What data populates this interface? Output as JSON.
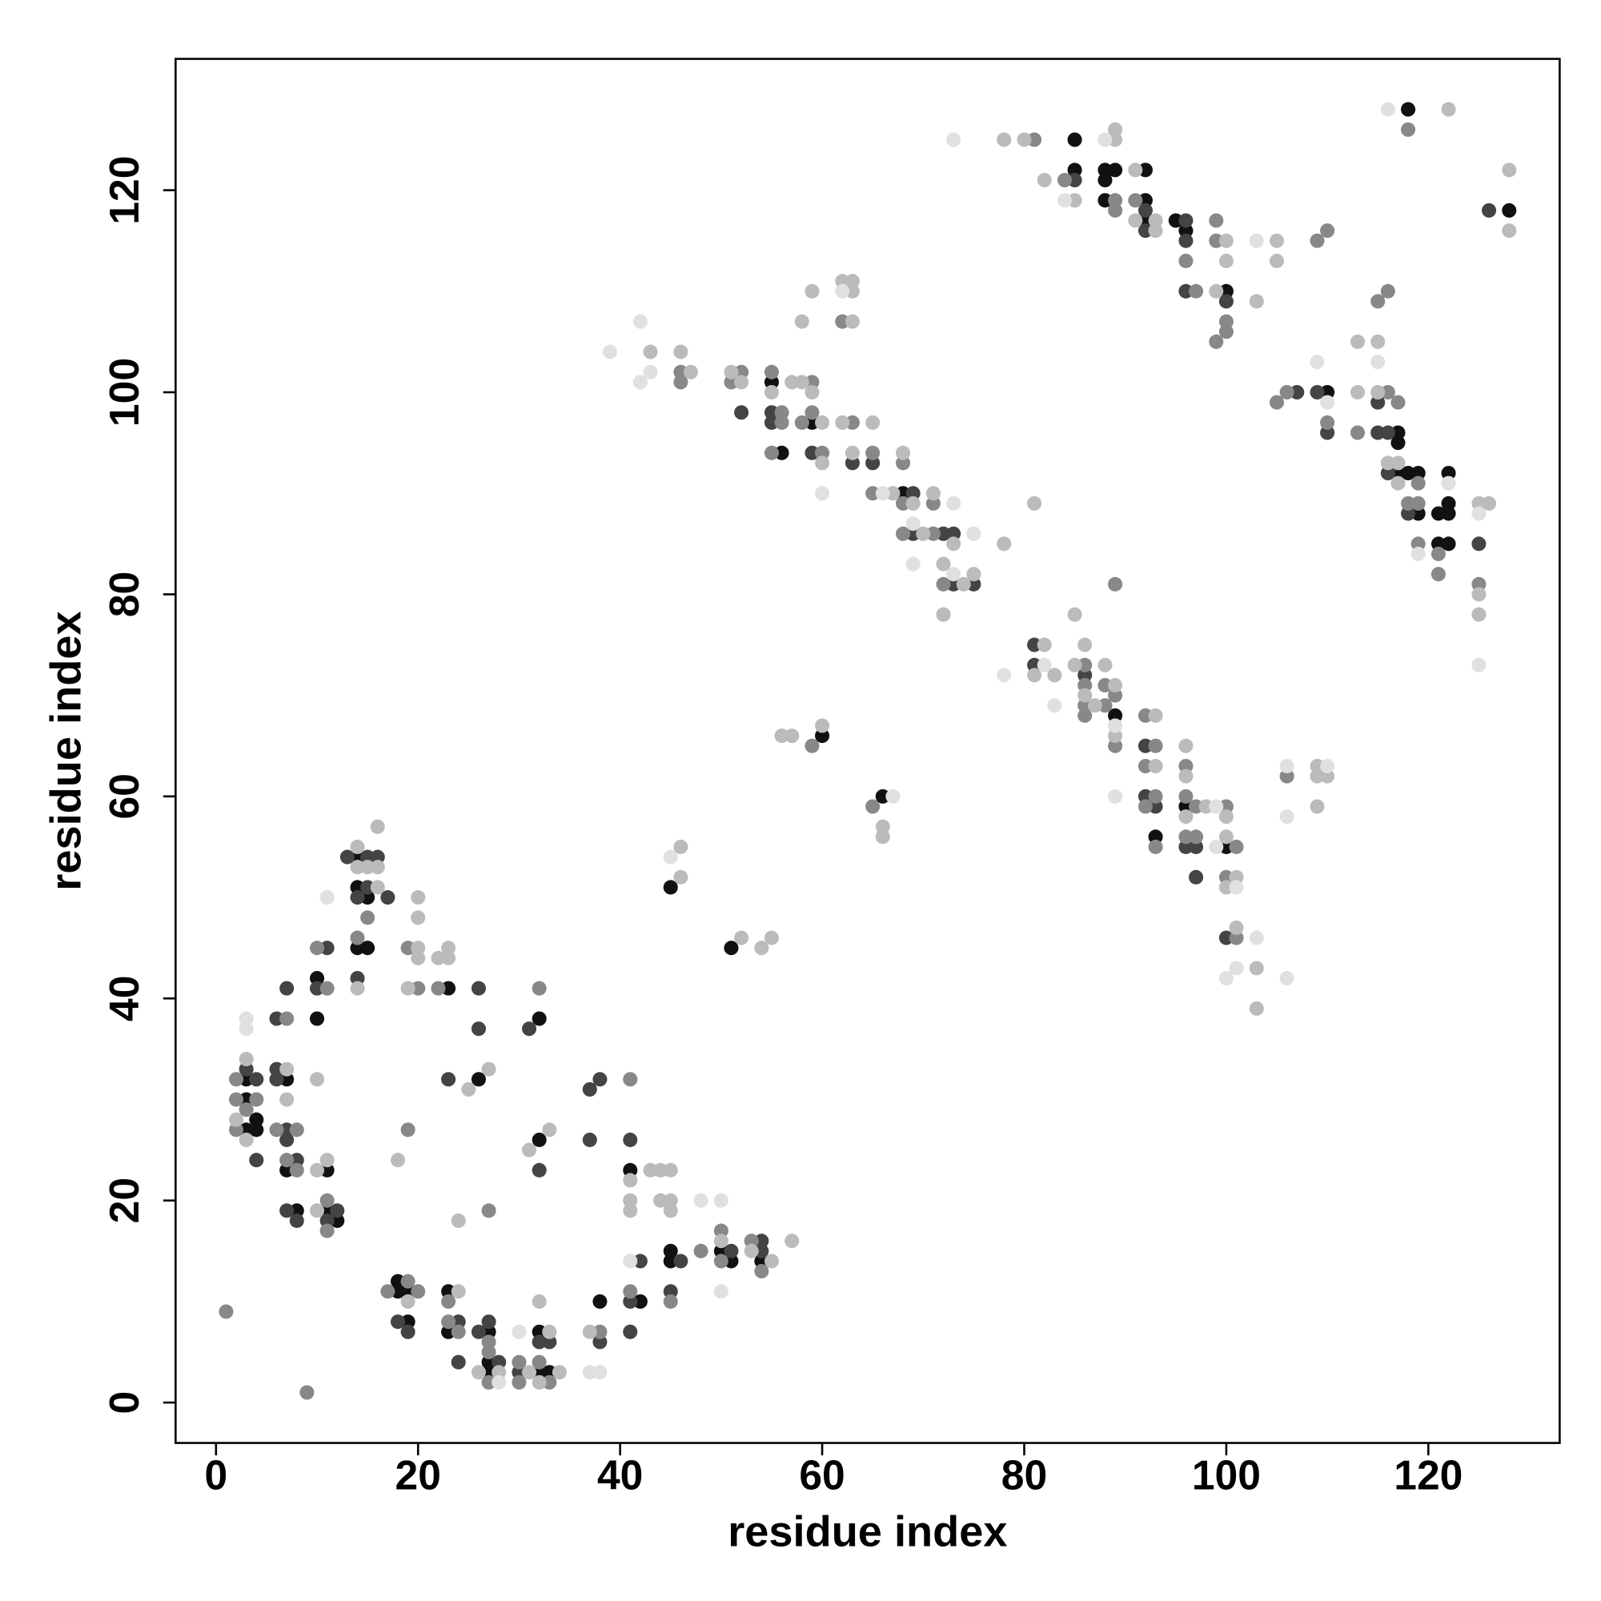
{
  "chart_data": {
    "type": "scatter",
    "xlabel": "residue index",
    "ylabel": "residue index",
    "xlim": [
      -4,
      133
    ],
    "ylim": [
      -4,
      133
    ],
    "xticks": [
      0,
      20,
      40,
      60,
      80,
      100,
      120
    ],
    "yticks": [
      0,
      20,
      40,
      60,
      80,
      100,
      120
    ],
    "grid": false,
    "series": [
      {
        "color": "#111111",
        "x": [
          3,
          3,
          3,
          4,
          4,
          7,
          7,
          8,
          10,
          10,
          11,
          11,
          12,
          14,
          14,
          14,
          15,
          15,
          23,
          26,
          32,
          32,
          41,
          18,
          18,
          19,
          19,
          23,
          23,
          27,
          27,
          27,
          32,
          32,
          33,
          38,
          42,
          45,
          45,
          50,
          51,
          54,
          45,
          51,
          60,
          66,
          55,
          56,
          59,
          68,
          85,
          85,
          88,
          89,
          88,
          88,
          92,
          92,
          92,
          95,
          96,
          100,
          110,
          117,
          117,
          117,
          118,
          119,
          119,
          121,
          121,
          122,
          122,
          122,
          122,
          118,
          128,
          89,
          93,
          96,
          100
        ],
        "y": [
          27,
          30,
          32,
          27,
          28,
          32,
          23,
          19,
          42,
          38,
          23,
          19,
          18,
          54,
          51,
          45,
          50,
          45,
          41,
          32,
          38,
          26,
          23,
          12,
          11,
          11,
          8,
          11,
          7,
          7,
          4,
          3,
          7,
          3,
          3,
          10,
          10,
          15,
          14,
          15,
          14,
          14,
          51,
          45,
          66,
          60,
          101,
          94,
          97,
          90,
          125,
          122,
          122,
          122,
          121,
          119,
          122,
          119,
          117,
          117,
          116,
          110,
          100,
          96,
          95,
          92,
          92,
          92,
          88,
          88,
          85,
          92,
          89,
          88,
          85,
          128,
          118,
          68,
          56,
          59,
          55
        ]
      },
      {
        "color": "#444444",
        "x": [
          3,
          4,
          4,
          6,
          6,
          6,
          7,
          7,
          7,
          7,
          8,
          8,
          10,
          11,
          11,
          12,
          13,
          14,
          14,
          15,
          15,
          16,
          17,
          23,
          26,
          26,
          31,
          32,
          37,
          38,
          37,
          41,
          18,
          19,
          24,
          24,
          26,
          27,
          28,
          30,
          32,
          33,
          38,
          41,
          41,
          42,
          45,
          46,
          51,
          54,
          54,
          52,
          55,
          55,
          59,
          63,
          65,
          69,
          69,
          72,
          73,
          73,
          75,
          85,
          92,
          92,
          96,
          96,
          96,
          100,
          107,
          109,
          110,
          115,
          115,
          116,
          116,
          118,
          125,
          126,
          81,
          81,
          86,
          92,
          92,
          93,
          96,
          97,
          97,
          100
        ],
        "y": [
          33,
          32,
          24,
          33,
          32,
          38,
          41,
          27,
          26,
          19,
          24,
          18,
          41,
          45,
          18,
          19,
          54,
          50,
          42,
          54,
          51,
          54,
          50,
          32,
          41,
          37,
          37,
          23,
          31,
          32,
          26,
          26,
          8,
          7,
          8,
          4,
          7,
          8,
          4,
          3,
          6,
          6,
          6,
          10,
          7,
          14,
          11,
          14,
          15,
          16,
          15,
          98,
          98,
          97,
          94,
          93,
          93,
          90,
          86,
          86,
          86,
          81,
          81,
          121,
          118,
          116,
          117,
          115,
          110,
          109,
          100,
          100,
          96,
          99,
          96,
          96,
          92,
          88,
          85,
          118,
          75,
          73,
          72,
          65,
          60,
          59,
          55,
          55,
          52,
          46
        ]
      },
      {
        "color": "#888888",
        "x": [
          1,
          9,
          2,
          2,
          2,
          3,
          4,
          6,
          7,
          7,
          8,
          8,
          10,
          11,
          11,
          11,
          14,
          15,
          19,
          19,
          20,
          22,
          27,
          32,
          41,
          17,
          19,
          20,
          23,
          23,
          24,
          27,
          27,
          27,
          30,
          30,
          32,
          33,
          38,
          41,
          45,
          48,
          50,
          50,
          53,
          54,
          59,
          65,
          46,
          46,
          51,
          52,
          55,
          55,
          56,
          56,
          58,
          59,
          59,
          60,
          62,
          63,
          65,
          65,
          68,
          68,
          68,
          71,
          71,
          72,
          81,
          84,
          89,
          89,
          91,
          96,
          97,
          99,
          99,
          100,
          100,
          99,
          109,
          110,
          105,
          106,
          110,
          113,
          115,
          116,
          116,
          117,
          118,
          119,
          119,
          119,
          121,
          121,
          125,
          118,
          86,
          86,
          86,
          86,
          88,
          88,
          89,
          89,
          92,
          93,
          92,
          92,
          93,
          93,
          96,
          96,
          96,
          97,
          97,
          100,
          100,
          101,
          101,
          106,
          89
        ],
        "y": [
          9,
          1,
          27,
          30,
          32,
          29,
          30,
          27,
          38,
          24,
          27,
          23,
          45,
          41,
          20,
          17,
          46,
          48,
          45,
          27,
          41,
          41,
          19,
          41,
          32,
          11,
          12,
          11,
          10,
          8,
          7,
          6,
          5,
          2,
          4,
          2,
          4,
          2,
          7,
          11,
          10,
          15,
          17,
          14,
          16,
          13,
          65,
          59,
          102,
          101,
          101,
          102,
          102,
          94,
          98,
          97,
          97,
          101,
          98,
          94,
          107,
          97,
          94,
          90,
          93,
          89,
          86,
          89,
          86,
          81,
          125,
          121,
          119,
          118,
          119,
          113,
          110,
          117,
          115,
          107,
          106,
          105,
          115,
          116,
          99,
          100,
          97,
          96,
          109,
          110,
          100,
          99,
          89,
          91,
          89,
          85,
          84,
          82,
          81,
          126,
          73,
          71,
          69,
          68,
          71,
          69,
          70,
          65,
          68,
          65,
          63,
          59,
          60,
          55,
          63,
          60,
          56,
          59,
          56,
          59,
          52,
          55,
          46,
          62,
          81
        ]
      },
      {
        "color": "#bbbbbb",
        "x": [
          2,
          3,
          3,
          7,
          7,
          10,
          10,
          10,
          11,
          14,
          14,
          14,
          15,
          16,
          16,
          16,
          18,
          19,
          20,
          20,
          20,
          20,
          22,
          23,
          23,
          25,
          27,
          24,
          31,
          33,
          41,
          41,
          41,
          43,
          44,
          44,
          45,
          45,
          45,
          19,
          24,
          26,
          28,
          31,
          32,
          32,
          33,
          34,
          37,
          50,
          53,
          55,
          57,
          46,
          46,
          52,
          54,
          55,
          56,
          57,
          60,
          66,
          66,
          43,
          46,
          47,
          51,
          52,
          55,
          57,
          58,
          59,
          60,
          60,
          59,
          58,
          62,
          63,
          63,
          63,
          62,
          63,
          65,
          67,
          68,
          69,
          70,
          71,
          72,
          72,
          73,
          74,
          75,
          78,
          78,
          81,
          80,
          82,
          85,
          89,
          89,
          91,
          91,
          93,
          93,
          100,
          100,
          99,
          103,
          105,
          105,
          113,
          113,
          115,
          115,
          116,
          117,
          117,
          125,
          126,
          125,
          125,
          122,
          128,
          128,
          81,
          82,
          83,
          85,
          85,
          86,
          86,
          87,
          88,
          89,
          89,
          93,
          93,
          96,
          96,
          96,
          98,
          100,
          100,
          100,
          101,
          101,
          103,
          103,
          109,
          109,
          110,
          109
        ],
        "y": [
          28,
          34,
          26,
          33,
          30,
          32,
          23,
          19,
          24,
          55,
          53,
          41,
          53,
          57,
          53,
          51,
          24,
          41,
          50,
          48,
          45,
          44,
          44,
          45,
          44,
          31,
          33,
          18,
          25,
          27,
          22,
          20,
          19,
          23,
          23,
          20,
          23,
          20,
          19,
          10,
          11,
          3,
          3,
          3,
          10,
          2,
          7,
          3,
          7,
          16,
          15,
          14,
          16,
          55,
          52,
          46,
          45,
          46,
          66,
          66,
          67,
          57,
          56,
          104,
          104,
          102,
          102,
          101,
          100,
          101,
          101,
          100,
          97,
          93,
          110,
          107,
          111,
          111,
          110,
          107,
          97,
          94,
          97,
          90,
          94,
          89,
          86,
          90,
          83,
          78,
          85,
          81,
          82,
          125,
          85,
          89,
          125,
          121,
          119,
          126,
          125,
          122,
          117,
          117,
          116,
          115,
          113,
          110,
          109,
          115,
          113,
          105,
          100,
          105,
          100,
          93,
          93,
          91,
          89,
          89,
          80,
          78,
          128,
          122,
          116,
          72,
          75,
          72,
          78,
          73,
          75,
          70,
          69,
          73,
          71,
          66,
          68,
          63,
          65,
          62,
          58,
          59,
          58,
          56,
          51,
          52,
          47,
          43,
          39,
          63,
          62,
          62,
          59
        ]
      },
      {
        "color": "#e0e0e0",
        "x": [
          3,
          3,
          11,
          28,
          30,
          37,
          38,
          48,
          50,
          50,
          41,
          45,
          67,
          39,
          42,
          42,
          43,
          60,
          62,
          66,
          69,
          69,
          73,
          73,
          75,
          73,
          78,
          84,
          88,
          103,
          109,
          110,
          115,
          119,
          122,
          125,
          125,
          116,
          82,
          83,
          89,
          89,
          99,
          99,
          101,
          100,
          101,
          103,
          106,
          106,
          106,
          110
        ],
        "y": [
          37,
          38,
          50,
          2,
          7,
          3,
          3,
          20,
          20,
          11,
          14,
          54,
          60,
          104,
          107,
          101,
          102,
          90,
          110,
          90,
          87,
          83,
          89,
          82,
          86,
          125,
          72,
          119,
          125,
          115,
          103,
          99,
          103,
          84,
          91,
          88,
          73,
          128,
          73,
          69,
          67,
          60,
          59,
          55,
          51,
          42,
          43,
          46,
          42,
          58,
          63,
          63
        ]
      }
    ]
  }
}
